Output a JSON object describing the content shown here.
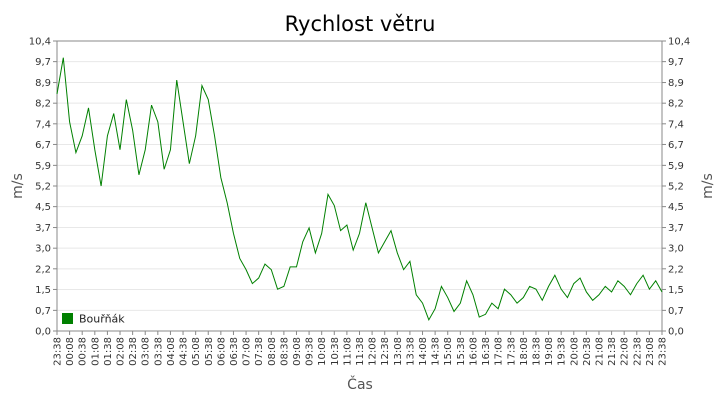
{
  "chart_data": {
    "type": "line",
    "title": "Rychlost větru",
    "x_label": "Čas",
    "y_label": "m/s",
    "categories": [
      "23:38",
      null,
      "00:08",
      null,
      "00:38",
      null,
      "01:08",
      null,
      "01:38",
      null,
      "02:08",
      null,
      "02:38",
      null,
      "03:08",
      null,
      "03:38",
      null,
      "04:08",
      null,
      "04:38",
      null,
      "05:08",
      null,
      "05:38",
      null,
      "06:08",
      null,
      "06:38",
      null,
      "07:08",
      null,
      "07:38",
      null,
      "08:08",
      null,
      "08:38",
      null,
      "09:08",
      null,
      "09:38",
      null,
      "10:08",
      null,
      "10:38",
      null,
      "11:08",
      null,
      "11:38",
      null,
      "12:08",
      null,
      "12:38",
      null,
      "13:08",
      null,
      "13:38",
      null,
      "14:08",
      null,
      "14:38",
      null,
      "15:08",
      null,
      "15:38",
      null,
      "16:08",
      null,
      "16:38",
      null,
      "17:08",
      null,
      "17:38",
      null,
      "18:08",
      null,
      "18:38",
      null,
      "19:08",
      null,
      "19:38",
      null,
      "20:08",
      null,
      "20:38",
      null,
      "21:08",
      null,
      "21:38",
      null,
      "22:08",
      null,
      "22:38",
      null,
      "23:08",
      null,
      "23:38"
    ],
    "series": [
      {
        "name": "Bouřňák",
        "color": "#008000",
        "values": [
          8.5,
          9.8,
          7.5,
          6.4,
          7.0,
          8.0,
          6.5,
          5.2,
          7.0,
          7.8,
          6.5,
          8.3,
          7.2,
          5.6,
          6.5,
          8.1,
          7.5,
          5.8,
          6.5,
          9.0,
          7.5,
          6.0,
          7.0,
          8.8,
          8.3,
          7.0,
          5.5,
          4.6,
          3.5,
          2.6,
          2.2,
          1.7,
          1.9,
          2.4,
          2.2,
          1.5,
          1.6,
          2.3,
          2.3,
          3.2,
          3.7,
          2.8,
          3.5,
          4.9,
          4.5,
          3.6,
          3.8,
          2.9,
          3.5,
          4.6,
          3.7,
          2.8,
          3.2,
          3.6,
          2.8,
          2.2,
          2.5,
          1.3,
          1.0,
          0.4,
          0.8,
          1.6,
          1.2,
          0.7,
          1.0,
          1.8,
          1.3,
          0.5,
          0.6,
          1.0,
          0.8,
          1.5,
          1.3,
          1.0,
          1.2,
          1.6,
          1.5,
          1.1,
          1.6,
          2.0,
          1.5,
          1.2,
          1.7,
          1.9,
          1.4,
          1.1,
          1.3,
          1.6,
          1.4,
          1.8,
          1.6,
          1.3,
          1.7,
          2.0,
          1.5,
          1.8,
          1.4
        ]
      }
    ],
    "ylim": [
      0,
      10.4
    ],
    "yticks": [
      {
        "value": 0,
        "label": "0,0"
      },
      {
        "value": 0.74,
        "label": "0,7"
      },
      {
        "value": 1.49,
        "label": "1,5"
      },
      {
        "value": 2.23,
        "label": "2,2"
      },
      {
        "value": 2.97,
        "label": "3,0"
      },
      {
        "value": 3.71,
        "label": "3,7"
      },
      {
        "value": 4.46,
        "label": "4,5"
      },
      {
        "value": 5.2,
        "label": "5,2"
      },
      {
        "value": 5.94,
        "label": "5,9"
      },
      {
        "value": 6.69,
        "label": "6,7"
      },
      {
        "value": 7.43,
        "label": "7,4"
      },
      {
        "value": 8.17,
        "label": "8,2"
      },
      {
        "value": 8.91,
        "label": "8,9"
      },
      {
        "value": 9.66,
        "label": "9,7"
      },
      {
        "value": 10.4,
        "label": "10,4"
      }
    ],
    "grid": true,
    "legend": "bottom-left"
  }
}
